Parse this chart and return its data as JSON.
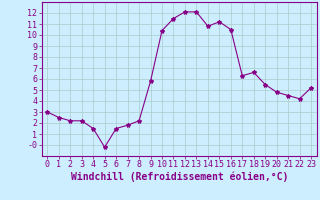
{
  "x": [
    0,
    1,
    2,
    3,
    4,
    5,
    6,
    7,
    8,
    9,
    10,
    11,
    12,
    13,
    14,
    15,
    16,
    17,
    18,
    19,
    20,
    21,
    22,
    23
  ],
  "y": [
    3.0,
    2.5,
    2.2,
    2.2,
    1.5,
    -0.2,
    1.5,
    1.8,
    2.2,
    5.8,
    10.4,
    11.5,
    12.1,
    12.1,
    10.8,
    11.2,
    10.5,
    6.3,
    6.6,
    5.5,
    4.8,
    4.5,
    4.2,
    5.2
  ],
  "line_color": "#880088",
  "marker": "*",
  "marker_size": 3,
  "bg_color": "#cceeff",
  "grid_color": "#aacccc",
  "xlabel": "Windchill (Refroidissement éolien,°C)",
  "xlabel_color": "#880088",
  "ylim": [
    -1,
    13
  ],
  "xlim": [
    -0.5,
    23.5
  ],
  "yticks": [
    0,
    1,
    2,
    3,
    4,
    5,
    6,
    7,
    8,
    9,
    10,
    11,
    12
  ],
  "ytick_labels": [
    "-0",
    "1",
    "2",
    "3",
    "4",
    "5",
    "6",
    "7",
    "8",
    "9",
    "10",
    "11",
    "12"
  ],
  "xticks": [
    0,
    1,
    2,
    3,
    4,
    5,
    6,
    7,
    8,
    9,
    10,
    11,
    12,
    13,
    14,
    15,
    16,
    17,
    18,
    19,
    20,
    21,
    22,
    23
  ],
  "tick_color": "#880088",
  "spine_color": "#880088",
  "tick_fontsize": 6,
  "xlabel_fontsize": 7
}
